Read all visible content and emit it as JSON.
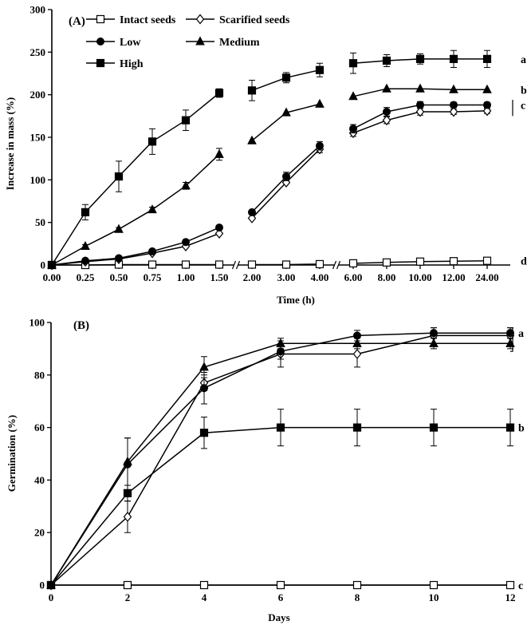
{
  "chart_data": [
    {
      "panel": "(A)",
      "type": "line",
      "ylabel": "Increase in mass (%)",
      "xlabel": "Time (h)",
      "ylim": [
        0,
        300
      ],
      "yticks": [
        0,
        50,
        100,
        150,
        200,
        250,
        300
      ],
      "categories": [
        "0.00",
        "0.25",
        "0.50",
        "0.75",
        "1.00",
        "1.50",
        "2.00",
        "3.00",
        "4.00",
        "6.00",
        "8.00",
        "10.00",
        "12.00",
        "24.00"
      ],
      "axis_breaks_after": [
        "1.50",
        "4.00"
      ],
      "legend": [
        {
          "name": "Intact seeds",
          "marker": "square-open"
        },
        {
          "name": "Scarified seeds",
          "marker": "diamond-open"
        },
        {
          "name": "Low",
          "marker": "circle"
        },
        {
          "name": "Medium",
          "marker": "triangle"
        },
        {
          "name": "High",
          "marker": "square"
        }
      ],
      "series": [
        {
          "name": "Intact seeds",
          "marker": "square-open",
          "values": [
            0,
            0,
            0.5,
            0.5,
            0.5,
            0.5,
            0.5,
            0.5,
            1,
            2,
            3,
            4,
            4.5,
            5
          ],
          "errors": [
            0,
            0,
            0,
            0,
            0,
            0,
            0,
            0,
            0,
            0,
            0,
            0,
            0,
            0
          ]
        },
        {
          "name": "Scarified seeds",
          "marker": "diamond-open",
          "values": [
            0,
            4,
            7,
            14,
            22,
            37,
            55,
            97,
            136,
            155,
            170,
            180,
            180,
            181
          ],
          "errors": [
            0,
            0,
            0,
            0,
            0,
            0,
            0,
            0,
            4,
            4,
            4,
            4,
            3,
            3
          ]
        },
        {
          "name": "Low",
          "marker": "circle",
          "values": [
            0,
            5,
            8,
            16,
            27,
            44,
            62,
            104,
            140,
            160,
            180,
            188,
            188,
            188
          ],
          "errors": [
            0,
            0,
            0,
            0,
            0,
            0,
            0,
            5,
            5,
            5,
            5,
            4,
            3,
            3
          ]
        },
        {
          "name": "Medium",
          "marker": "triangle",
          "values": [
            0,
            22,
            42,
            65,
            93,
            130,
            146,
            179,
            189,
            198,
            207,
            207,
            206,
            206
          ],
          "errors": [
            0,
            2,
            2,
            3,
            4,
            7,
            0,
            0,
            0,
            0,
            0,
            0,
            0,
            0
          ]
        },
        {
          "name": "High",
          "marker": "square",
          "values": [
            0,
            62,
            104,
            145,
            170,
            202,
            205,
            220,
            229,
            237,
            240,
            242,
            242,
            242
          ],
          "errors": [
            0,
            9,
            18,
            15,
            12,
            5,
            12,
            6,
            8,
            12,
            7,
            6,
            10,
            10
          ]
        }
      ],
      "group_labels": [
        {
          "text": "a",
          "series": "High"
        },
        {
          "text": "b",
          "series": "Medium"
        },
        {
          "text": "c",
          "series": "Low"
        },
        {
          "text": "d",
          "series": "Intact seeds"
        }
      ]
    },
    {
      "panel": "(B)",
      "type": "line",
      "ylabel": "Germination (%)",
      "xlabel": "Days",
      "xlim": [
        0,
        12
      ],
      "ylim": [
        0,
        100
      ],
      "xticks": [
        0,
        2,
        4,
        6,
        8,
        10,
        12
      ],
      "yticks": [
        0,
        20,
        40,
        60,
        80,
        100
      ],
      "x": [
        0,
        2,
        4,
        6,
        8,
        10,
        12
      ],
      "series": [
        {
          "name": "Intact seeds",
          "marker": "square-open",
          "values": [
            0,
            0,
            0,
            0,
            0,
            0,
            0
          ],
          "errors": [
            0,
            0,
            0,
            0,
            0,
            0,
            0
          ]
        },
        {
          "name": "Scarified seeds",
          "marker": "diamond-open",
          "values": [
            0,
            26,
            77,
            88,
            88,
            95,
            95
          ],
          "errors": [
            0,
            6,
            3,
            5,
            5,
            3,
            3
          ]
        },
        {
          "name": "Low",
          "marker": "circle",
          "values": [
            0,
            46,
            75,
            89,
            95,
            96,
            96
          ],
          "errors": [
            0,
            10,
            6,
            3,
            2,
            2,
            2
          ]
        },
        {
          "name": "Medium",
          "marker": "triangle",
          "values": [
            0,
            47,
            83,
            92,
            92,
            92,
            92
          ],
          "errors": [
            0,
            9,
            4,
            2,
            2,
            2,
            2
          ]
        },
        {
          "name": "High",
          "marker": "square",
          "values": [
            0,
            35,
            58,
            60,
            60,
            60,
            60
          ],
          "errors": [
            0,
            3,
            6,
            7,
            7,
            7,
            7
          ]
        }
      ],
      "group_labels": [
        {
          "text": "a",
          "series": "Low"
        },
        {
          "text": "b",
          "series": "High"
        },
        {
          "text": "c",
          "series": "Intact seeds"
        }
      ]
    }
  ]
}
